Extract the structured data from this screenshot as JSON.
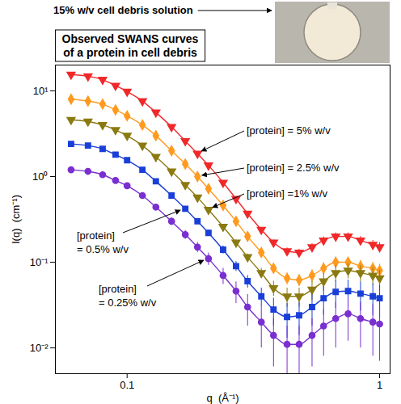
{
  "chart_data": {
    "type": "scatter",
    "title": "Observed SWANS curves\nof a protein in cell debris",
    "annotation": "15% w/v cell debris solution",
    "x_label": "q  (Å⁻¹)",
    "y_label": "I(q)  (cm⁻¹)",
    "log": true,
    "grid": false,
    "xlim": [
      0.052,
      1.1
    ],
    "ylim": [
      0.005,
      20
    ],
    "xticks": [
      0.1,
      1
    ],
    "yticks": [
      {
        "value": 0.01,
        "label": "10⁻²"
      },
      {
        "value": 0.1,
        "label": "10⁻¹"
      },
      {
        "value": 1,
        "label": "10⁰"
      },
      {
        "value": 10,
        "label": "10¹"
      }
    ],
    "x": [
      0.06,
      0.07,
      0.08,
      0.09,
      0.1,
      0.115,
      0.13,
      0.15,
      0.17,
      0.19,
      0.21,
      0.24,
      0.27,
      0.3,
      0.34,
      0.38,
      0.43,
      0.48,
      0.54,
      0.6,
      0.67,
      0.75,
      0.84,
      0.94,
      1.0
    ],
    "series": [
      {
        "name": "[protein] = 5% w/v",
        "color": "#f0282a",
        "marker": "triangle-down",
        "line_style": "solid",
        "values": [
          15.5,
          14.8,
          13.5,
          11.5,
          9.8,
          7.6,
          5.6,
          3.8,
          2.6,
          1.85,
          1.35,
          0.85,
          0.55,
          0.37,
          0.24,
          0.17,
          0.135,
          0.13,
          0.15,
          0.18,
          0.2,
          0.2,
          0.18,
          0.16,
          0.15
        ],
        "errors": [
          0.3,
          0.3,
          0.3,
          0.25,
          0.2,
          0.15,
          0.12,
          0.08,
          0.06,
          0.05,
          0.04,
          0.03,
          0.02,
          0.02,
          0.015,
          0.012,
          0.012,
          0.012,
          0.015,
          0.018,
          0.02,
          0.02,
          0.02,
          0.02,
          0.02
        ]
      },
      {
        "name": "[protein] = 2.5% w/v",
        "color": "#ff9a1f",
        "marker": "diamond",
        "line_style": "solid",
        "values": [
          8.0,
          7.6,
          7.0,
          6.0,
          5.1,
          4.0,
          3.0,
          2.0,
          1.4,
          1.0,
          0.72,
          0.46,
          0.3,
          0.2,
          0.13,
          0.085,
          0.065,
          0.062,
          0.07,
          0.085,
          0.1,
          0.1,
          0.09,
          0.085,
          0.08
        ],
        "errors": [
          0.15,
          0.15,
          0.13,
          0.12,
          0.1,
          0.08,
          0.06,
          0.05,
          0.04,
          0.03,
          0.025,
          0.02,
          0.015,
          0.012,
          0.01,
          0.01,
          0.01,
          0.01,
          0.012,
          0.014,
          0.015,
          0.015,
          0.015,
          0.015,
          0.015
        ]
      },
      {
        "name": "[protein] =1% w/v",
        "color": "#8a7a10",
        "marker": "triangle-down",
        "line_style": "solid",
        "values": [
          4.6,
          4.4,
          4.0,
          3.5,
          3.0,
          2.3,
          1.7,
          1.15,
          0.8,
          0.57,
          0.41,
          0.26,
          0.17,
          0.115,
          0.075,
          0.05,
          0.04,
          0.04,
          0.048,
          0.06,
          0.075,
          0.08,
          0.075,
          0.07,
          0.065
        ],
        "errors": [
          0.12,
          0.1,
          0.1,
          0.08,
          0.07,
          0.06,
          0.05,
          0.04,
          0.03,
          0.025,
          0.02,
          0.015,
          0.012,
          0.01,
          0.01,
          0.01,
          0.01,
          0.01,
          0.012,
          0.014,
          0.016,
          0.016,
          0.016,
          0.016,
          0.016
        ]
      },
      {
        "name": "[protein]\n= 0.5% w/v",
        "color": "#1a3fd8",
        "marker": "square",
        "line_style": "solid",
        "values": [
          2.4,
          2.3,
          2.1,
          1.8,
          1.55,
          1.2,
          0.88,
          0.6,
          0.42,
          0.3,
          0.22,
          0.14,
          0.09,
          0.06,
          0.04,
          0.028,
          0.023,
          0.024,
          0.03,
          0.038,
          0.045,
          0.046,
          0.043,
          0.04,
          0.038
        ],
        "errors": [
          0.1,
          0.08,
          0.08,
          0.07,
          0.06,
          0.05,
          0.04,
          0.03,
          0.025,
          0.02,
          0.018,
          0.015,
          0.012,
          0.01,
          0.01,
          0.01,
          0.01,
          0.01,
          0.012,
          0.014,
          0.016,
          0.016,
          0.016,
          0.016,
          0.016
        ]
      },
      {
        "name": "[protein]\n= 0.25% w/v",
        "color": "#7a2fd0",
        "marker": "circle",
        "line_style": "solid",
        "values": [
          1.2,
          1.15,
          1.05,
          0.9,
          0.78,
          0.6,
          0.44,
          0.3,
          0.21,
          0.15,
          0.11,
          0.07,
          0.046,
          0.03,
          0.02,
          0.014,
          0.011,
          0.011,
          0.014,
          0.018,
          0.022,
          0.025,
          0.022,
          0.02,
          0.019
        ],
        "errors": [
          0.08,
          0.07,
          0.06,
          0.05,
          0.05,
          0.04,
          0.035,
          0.03,
          0.025,
          0.02,
          0.018,
          0.015,
          0.013,
          0.012,
          0.01,
          0.008,
          0.007,
          0.007,
          0.008,
          0.01,
          0.012,
          0.013,
          0.012,
          0.012,
          0.012
        ]
      }
    ]
  }
}
